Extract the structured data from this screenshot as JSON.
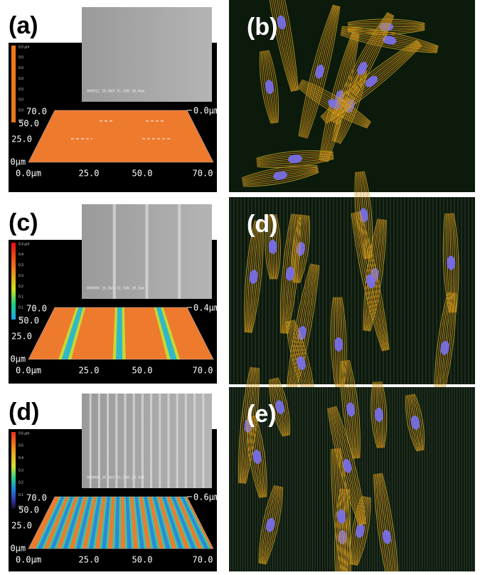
{
  "panels": [
    {
      "label": "(a)",
      "sem_caption": "000012 20.0kV X1.50K 20.0um",
      "colorbar": [
        "0.0 µm",
        "0.0",
        "0.0",
        "0.0",
        "0.0",
        "0.0",
        "0.0",
        "0.0"
      ],
      "y_labels": [
        "70.0",
        "50.0",
        "25.0",
        "0.0µm"
      ],
      "x_labels": [
        "0.0µm",
        "25.0",
        "50.0",
        "70.0"
      ],
      "z_label": "0.0µm"
    },
    {
      "label": "(c)",
      "sem_caption": "000000 20.0kV X1.50K 20.0um",
      "colorbar": [
        "0.4 µm",
        "0.4",
        "0.3",
        "0.3",
        "0.2",
        "0.1",
        "0.1",
        "0.0"
      ],
      "y_labels": [
        "70.0",
        "50.0",
        "25.0",
        "0.0µm"
      ],
      "x_labels": [
        "0.0µm",
        "25.0",
        "50.0",
        "70.0"
      ],
      "z_label": "0.4µm"
    },
    {
      "label": "(d)",
      "sem_caption": "000000 20.0kV X1.50K 20.0um",
      "colorbar": [
        "0.6 µm",
        "0.5",
        "0.4",
        "0.3",
        "0.2",
        "0.1",
        "0.0"
      ],
      "y_labels": [
        "70.0",
        "50.0",
        "25.0",
        "0.0µm"
      ],
      "x_labels": [
        "0.0µm",
        "25.0",
        "50.0",
        "70.0"
      ],
      "z_label": "0.6µm"
    }
  ],
  "micrographs": [
    {
      "label": "(b)"
    },
    {
      "label": "(d)"
    },
    {
      "label": "(e)"
    }
  ]
}
